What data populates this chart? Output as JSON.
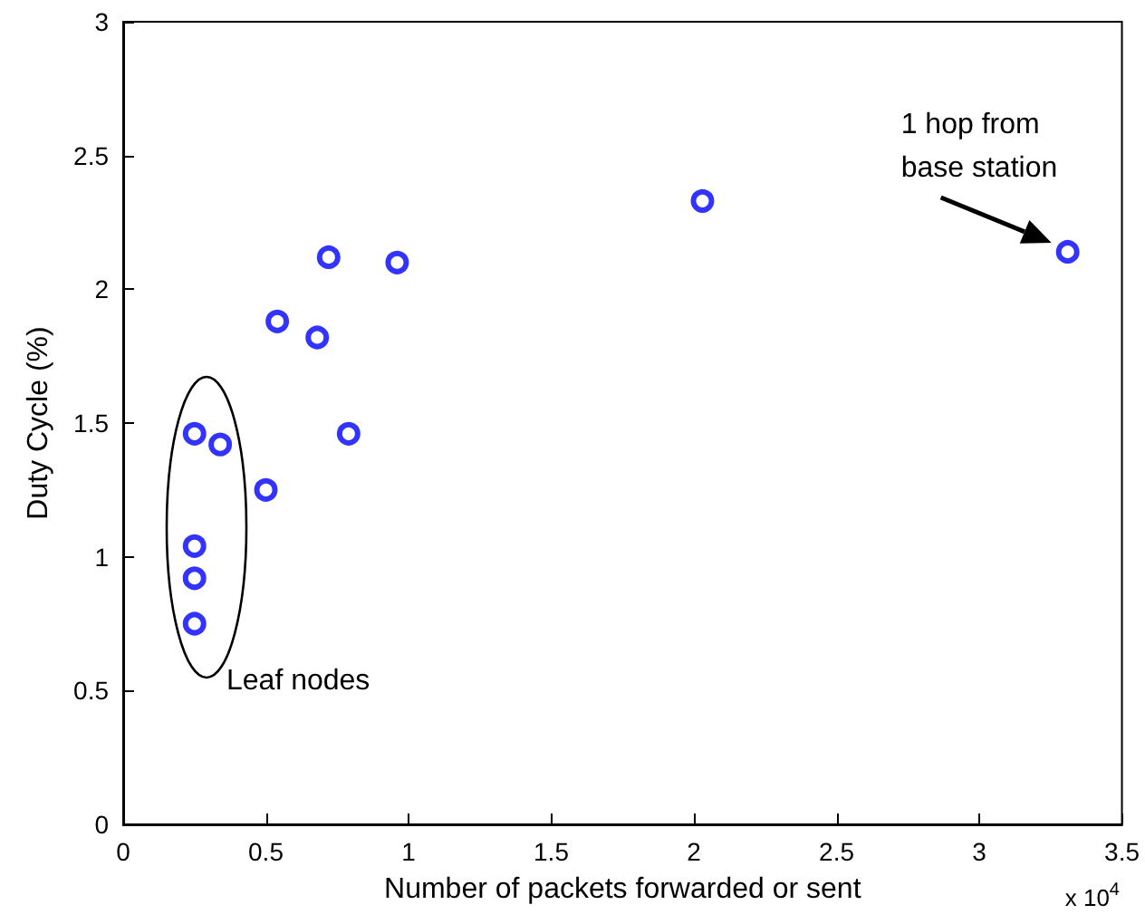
{
  "chart_data": {
    "type": "scatter",
    "xlabel": "Number of packets forwarded or sent",
    "ylabel": "Duty Cycle (%)",
    "x": [
      0.25,
      0.34,
      0.25,
      0.25,
      0.25,
      0.5,
      0.54,
      0.68,
      0.72,
      0.79,
      0.96,
      2.03,
      3.31
    ],
    "values": [
      1.46,
      1.42,
      1.04,
      0.92,
      0.75,
      1.25,
      1.88,
      1.82,
      2.12,
      1.46,
      2.1,
      2.33,
      2.14
    ],
    "color": "#0000ff",
    "marker": "circle",
    "xlim": [
      0,
      3.5
    ],
    "xticks": [
      0,
      0.5,
      1,
      1.5,
      2,
      2.5,
      3,
      3.5
    ],
    "ylim": [
      0,
      3
    ],
    "yticks": [
      0,
      0.5,
      1,
      1.5,
      2,
      2.5,
      3
    ],
    "grid": false,
    "annotations": [
      {
        "text": "1 hop from base station",
        "x": 3.31,
        "y": 2.14
      },
      "Leaf nodes",
      "x 10$^{4}$"
    ]
  }
}
